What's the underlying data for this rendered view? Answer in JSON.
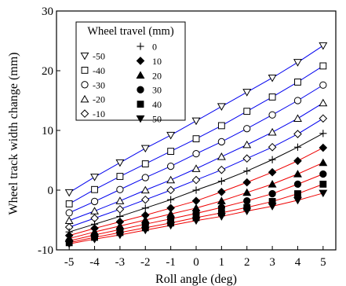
{
  "chart_data": {
    "type": "line",
    "xlabel": "Roll angle (deg)",
    "ylabel": "Wheel track width change (mm)",
    "xlim": [
      -5.5,
      5.5
    ],
    "ylim": [
      -10,
      30
    ],
    "x_ticks": [
      -5,
      -4,
      -3,
      -2,
      -1,
      0,
      1,
      2,
      3,
      4,
      5
    ],
    "y_ticks": [
      -10,
      0,
      10,
      20,
      30
    ],
    "x_tick_labels": [
      "-5",
      "-4",
      "-3",
      "-2",
      "-1",
      "0",
      "1",
      "2",
      "3",
      "4",
      "5"
    ],
    "y_tick_labels": [
      "-10",
      "0",
      "10",
      "20",
      "30"
    ],
    "grid": false,
    "legend": {
      "title": "Wheel travel (mm)",
      "position": "top-left"
    },
    "x": [
      -5,
      -4,
      -3,
      -2,
      -1,
      0,
      1,
      2,
      3,
      4,
      5
    ],
    "series": [
      {
        "name": "-50",
        "marker": "triangle-down-open",
        "line_color": "#0000ee",
        "values": [
          -0.4,
          2.2,
          4.6,
          7.0,
          9.2,
          11.6,
          14.0,
          16.4,
          18.8,
          21.4,
          24.2
        ]
      },
      {
        "name": "-40",
        "marker": "square-open",
        "line_color": "#0000ee",
        "values": [
          -2.3,
          0.1,
          2.3,
          4.4,
          6.5,
          8.6,
          10.8,
          13.2,
          15.6,
          18.1,
          20.8
        ]
      },
      {
        "name": "-30",
        "marker": "circle-open",
        "line_color": "#0000ee",
        "values": [
          -3.8,
          -1.9,
          0.1,
          2.1,
          4.0,
          6.1,
          8.1,
          10.3,
          12.6,
          15.0,
          17.6
        ]
      },
      {
        "name": "-20",
        "marker": "triangle-up-open",
        "line_color": "#0000ee",
        "values": [
          -5.1,
          -3.5,
          -1.8,
          0.0,
          1.7,
          3.6,
          5.6,
          7.6,
          9.7,
          12.0,
          14.6
        ]
      },
      {
        "name": "-10",
        "marker": "diamond-open",
        "line_color": "#0000ee",
        "values": [
          -6.2,
          -4.7,
          -3.2,
          -1.6,
          0.0,
          1.7,
          3.4,
          5.3,
          7.2,
          9.4,
          12.0
        ]
      },
      {
        "name": "0",
        "marker": "plus",
        "line_color": "#000000",
        "values": [
          -7.0,
          -5.7,
          -4.4,
          -3.0,
          -1.6,
          0.0,
          1.5,
          3.2,
          5.1,
          7.2,
          9.5
        ]
      },
      {
        "name": "10",
        "marker": "diamond-filled",
        "line_color": "#ee0000",
        "values": [
          -7.6,
          -6.4,
          -5.3,
          -4.2,
          -3.0,
          -1.8,
          -0.3,
          1.3,
          3.0,
          4.9,
          7.1
        ]
      },
      {
        "name": "20",
        "marker": "triangle-up-filled",
        "line_color": "#ee0000",
        "values": [
          -8.1,
          -7.0,
          -6.0,
          -5.0,
          -4.0,
          -3.0,
          -1.8,
          -0.4,
          1.0,
          2.7,
          4.6
        ]
      },
      {
        "name": "30",
        "marker": "circle-filled",
        "line_color": "#ee0000",
        "values": [
          -8.5,
          -7.5,
          -6.6,
          -5.7,
          -4.8,
          -3.9,
          -2.9,
          -1.8,
          -0.6,
          1.0,
          2.7
        ]
      },
      {
        "name": "40",
        "marker": "square-filled",
        "line_color": "#ee0000",
        "values": [
          -8.8,
          -7.9,
          -7.1,
          -6.3,
          -5.5,
          -4.6,
          -3.8,
          -2.9,
          -1.9,
          -0.6,
          1.0
        ]
      },
      {
        "name": "50",
        "marker": "triangle-down-filled",
        "line_color": "#ee0000",
        "values": [
          -9.0,
          -8.2,
          -7.5,
          -6.7,
          -5.9,
          -5.1,
          -4.4,
          -3.5,
          -2.7,
          -1.7,
          -0.5
        ]
      }
    ]
  }
}
